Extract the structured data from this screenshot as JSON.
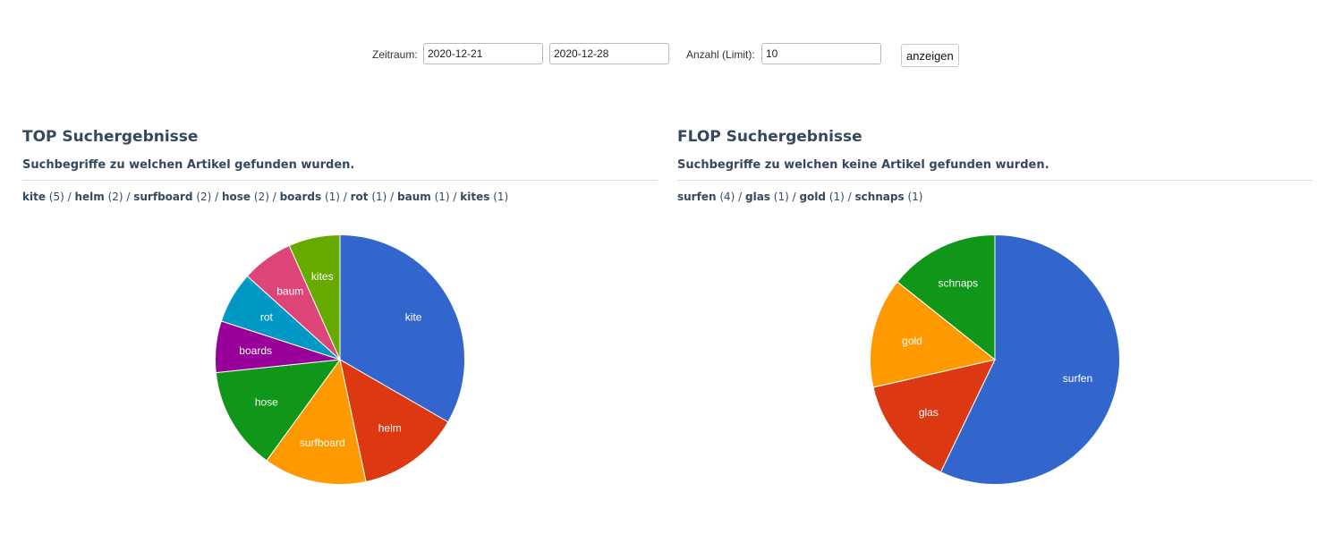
{
  "filter": {
    "period_label": "Zeitraum:",
    "date_from": "2020-12-21",
    "date_to": "2020-12-28",
    "limit_label": "Anzahl (Limit):",
    "limit_value": "10",
    "submit_label": "anzeigen"
  },
  "top": {
    "title": "TOP Suchergebnisse",
    "subtitle": "Suchbegriffe zu welchen Artikel gefunden wurden.",
    "terms": [
      {
        "term": "kite",
        "count": "(5)"
      },
      {
        "term": "helm",
        "count": "(2)"
      },
      {
        "term": "surfboard",
        "count": "(2)"
      },
      {
        "term": "hose",
        "count": "(2)"
      },
      {
        "term": "boards",
        "count": "(1)"
      },
      {
        "term": "rot",
        "count": "(1)"
      },
      {
        "term": "baum",
        "count": "(1)"
      },
      {
        "term": "kites",
        "count": "(1)"
      }
    ]
  },
  "flop": {
    "title": "FLOP Suchergebnisse",
    "subtitle": "Suchbegriffe zu welchen keine Artikel gefunden wurden.",
    "terms": [
      {
        "term": "surfen",
        "count": "(4)"
      },
      {
        "term": "glas",
        "count": "(1)"
      },
      {
        "term": "gold",
        "count": "(1)"
      },
      {
        "term": "schnaps",
        "count": "(1)"
      }
    ]
  },
  "separator": " / ",
  "chart_data": [
    {
      "type": "pie",
      "categories": [
        "kite",
        "helm",
        "surfboard",
        "hose",
        "boards",
        "rot",
        "baum",
        "kites"
      ],
      "values": [
        5,
        2,
        2,
        2,
        1,
        1,
        1,
        1
      ],
      "colors": [
        "#3366cc",
        "#dc3912",
        "#ff9900",
        "#109618",
        "#990099",
        "#0099c6",
        "#dd4477",
        "#66aa00"
      ]
    },
    {
      "type": "pie",
      "categories": [
        "surfen",
        "glas",
        "gold",
        "schnaps"
      ],
      "values": [
        4,
        1,
        1,
        1
      ],
      "colors": [
        "#3366cc",
        "#dc3912",
        "#ff9900",
        "#109618"
      ]
    }
  ]
}
